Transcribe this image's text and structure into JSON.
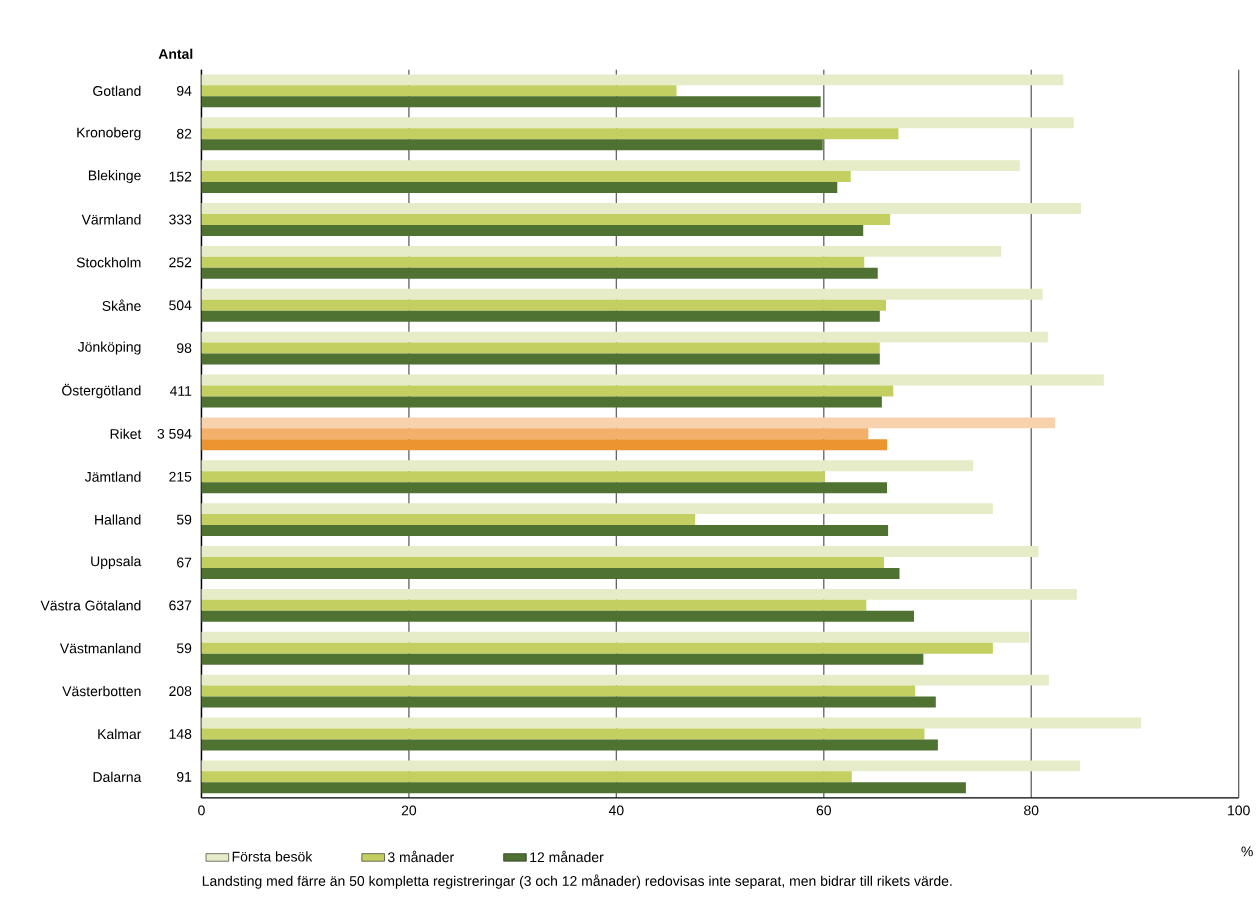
{
  "chart_data": {
    "type": "bar",
    "orientation": "horizontal",
    "categories": [
      "Gotland",
      "Kronoberg",
      "Blekinge",
      "Värmland",
      "Stockholm",
      "Skåne",
      "Jönköping",
      "Östergötland",
      "Riket",
      "Jämtland",
      "Halland",
      "Uppsala",
      "Västra Götaland",
      "Västmanland",
      "Västerbotten",
      "Kalmar",
      "Dalarna"
    ],
    "y2label": "Antal",
    "y2_categories": [
      "94",
      "82",
      "152",
      "333",
      "252",
      "504",
      "98",
      "411",
      "3 594",
      "215",
      "59",
      "67",
      "637",
      "59",
      "208",
      "148",
      "91"
    ],
    "series": [
      {
        "name": "Första besök",
        "color": "#e6ecc8",
        "colors": [
          "#e6ecc8",
          "#e6ecc8",
          "#e6ecc8",
          "#e6ecc8",
          "#e6ecc8",
          "#e6ecc8",
          "#e6ecc8",
          "#e6ecc8",
          "#f8d2ad",
          "#e6ecc8",
          "#e6ecc8",
          "#e6ecc8",
          "#e6ecc8",
          "#e6ecc8",
          "#e6ecc8",
          "#e6ecc8",
          "#e6ecc8"
        ],
        "values": [
          83.1,
          84.1,
          78.9,
          84.8,
          77.1,
          81.1,
          81.6,
          87.0,
          82.3,
          74.4,
          76.3,
          80.7,
          84.4,
          79.8,
          81.7,
          90.6,
          84.7
        ]
      },
      {
        "name": "3 månader",
        "color": "#c4cf62",
        "colors": [
          "#c4cf62",
          "#c4cf62",
          "#c4cf62",
          "#c4cf62",
          "#c4cf62",
          "#c4cf62",
          "#c4cf62",
          "#c4cf62",
          "#f2b06b",
          "#c4cf62",
          "#c4cf62",
          "#c4cf62",
          "#c4cf62",
          "#c4cf62",
          "#c4cf62",
          "#c4cf62",
          "#c4cf62"
        ],
        "values": [
          45.8,
          67.2,
          62.6,
          66.4,
          63.9,
          66.0,
          65.4,
          66.7,
          64.3,
          60.1,
          47.6,
          65.8,
          64.1,
          76.3,
          68.8,
          69.7,
          62.7
        ]
      },
      {
        "name": "12 månader",
        "color": "#4f7233",
        "colors": [
          "#4f7233",
          "#4f7233",
          "#4f7233",
          "#4f7233",
          "#4f7233",
          "#4f7233",
          "#4f7233",
          "#4f7233",
          "#ec9430",
          "#4f7233",
          "#4f7233",
          "#4f7233",
          "#4f7233",
          "#4f7233",
          "#4f7233",
          "#4f7233",
          "#4f7233"
        ],
        "values": [
          59.7,
          59.9,
          61.3,
          63.8,
          65.2,
          65.4,
          65.4,
          65.6,
          66.1,
          66.1,
          66.2,
          67.3,
          68.7,
          69.6,
          70.8,
          71.0,
          73.7
        ]
      }
    ],
    "xlim": [
      0,
      100
    ],
    "xticks": [
      0,
      20,
      40,
      60,
      80,
      100
    ],
    "xlabel": "%",
    "grid": "x",
    "legend": "bottom",
    "annotations": [
      "Landsting med färre än 50 kompletta registreringar (3 och 12 månader) redovisas inte separat, men bidrar till rikets värde."
    ]
  }
}
